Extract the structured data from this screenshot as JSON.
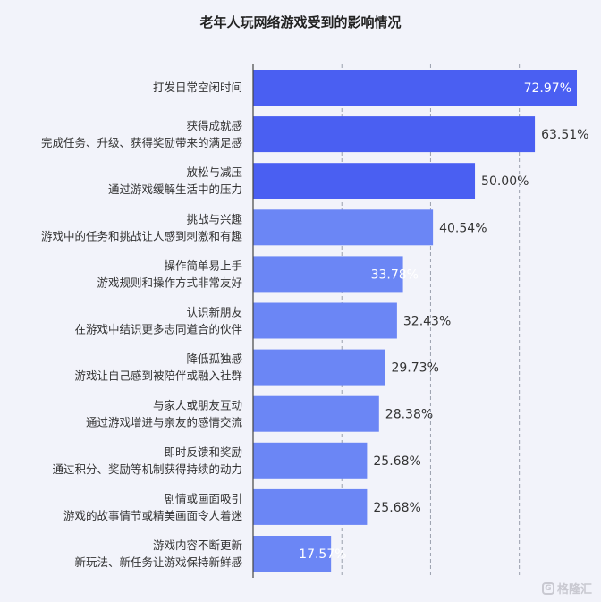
{
  "chart_data": {
    "type": "bar",
    "orientation": "horizontal",
    "title": "老年人玩网络游戏受到的影响情况",
    "categories": [
      [
        "打发日常空闲时间"
      ],
      [
        "获得成就感",
        "完成任务、升级、获得奖励带来的满足感"
      ],
      [
        "放松与减压",
        "通过游戏缓解生活中的压力"
      ],
      [
        "挑战与兴趣",
        "游戏中的任务和挑战让人感到刺激和有趣"
      ],
      [
        "操作简单易上手",
        "游戏规则和操作方式非常友好"
      ],
      [
        "认识新朋友",
        "在游戏中结识更多志同道合的伙伴"
      ],
      [
        "降低孤独感",
        "游戏让自己感到被陪伴或融入社群"
      ],
      [
        "与家人或朋友互动",
        "通过游戏增进与亲友的感情交流"
      ],
      [
        "即时反馈和奖励",
        "通过积分、奖励等机制获得持续的动力"
      ],
      [
        "剧情或画面吸引",
        "游戏的故事情节或精美画面令人着迷"
      ],
      [
        "游戏内容不断更新",
        "新玩法、新任务让游戏保持新鲜感"
      ]
    ],
    "values": [
      72.97,
      63.51,
      50.0,
      40.54,
      33.78,
      32.43,
      29.73,
      28.38,
      25.68,
      25.68,
      17.57
    ],
    "value_labels": [
      "72.97%",
      "63.51%",
      "50.00%",
      "40.54%",
      "33.78%",
      "32.43%",
      "29.73%",
      "28.38%",
      "25.68%",
      "25.68%",
      "17.57%"
    ],
    "xlim": [
      0,
      80
    ],
    "grid": true,
    "colors": {
      "top3": "#4a5ff2",
      "rest": "#6b86f5",
      "grid": "#9aa0ad",
      "axis": "#444444",
      "label_outside": "#333333",
      "label_inside": "#ffffff"
    }
  },
  "watermark": "格隆汇"
}
